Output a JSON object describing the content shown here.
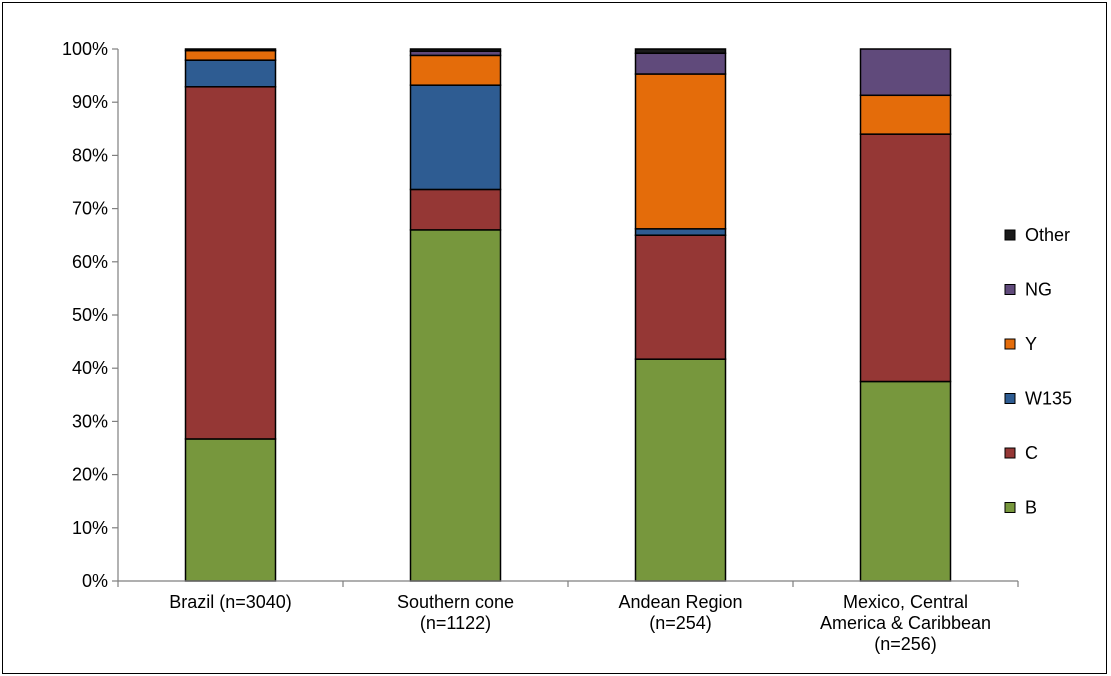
{
  "chart_data": {
    "type": "bar",
    "stacked": true,
    "percent_stacked": true,
    "categories": [
      [
        "Brazil (n=3040)"
      ],
      [
        "Southern cone",
        "(n=1122)"
      ],
      [
        "Andean Region",
        "(n=254)"
      ],
      [
        "Mexico, Central",
        "America & Caribbean",
        "(n=256)"
      ]
    ],
    "series": [
      {
        "name": "B",
        "color": "#77973D",
        "values": [
          26.7,
          66.0,
          41.7,
          37.5
        ]
      },
      {
        "name": "C",
        "color": "#953735",
        "values": [
          66.2,
          7.6,
          23.3,
          46.5
        ]
      },
      {
        "name": "W135",
        "color": "#2E5C92",
        "values": [
          5.0,
          19.6,
          1.2,
          0.0
        ]
      },
      {
        "name": "Y",
        "color": "#E46C0A",
        "values": [
          1.8,
          5.6,
          29.1,
          7.3
        ]
      },
      {
        "name": "NG",
        "color": "#604A7B",
        "values": [
          0.0,
          0.8,
          3.9,
          8.7
        ]
      },
      {
        "name": "Other",
        "color": "#1A1A1A",
        "values": [
          0.3,
          0.4,
          0.8,
          0.0
        ]
      }
    ],
    "ylim": [
      0,
      100
    ],
    "yticks": [
      "0%",
      "10%",
      "20%",
      "30%",
      "40%",
      "50%",
      "60%",
      "70%",
      "80%",
      "90%",
      "100%"
    ],
    "title": "",
    "xlabel": "",
    "ylabel": "",
    "grid": false,
    "legend_position": "right",
    "legend_order": [
      "Other",
      "NG",
      "Y",
      "W135",
      "C",
      "B"
    ]
  }
}
